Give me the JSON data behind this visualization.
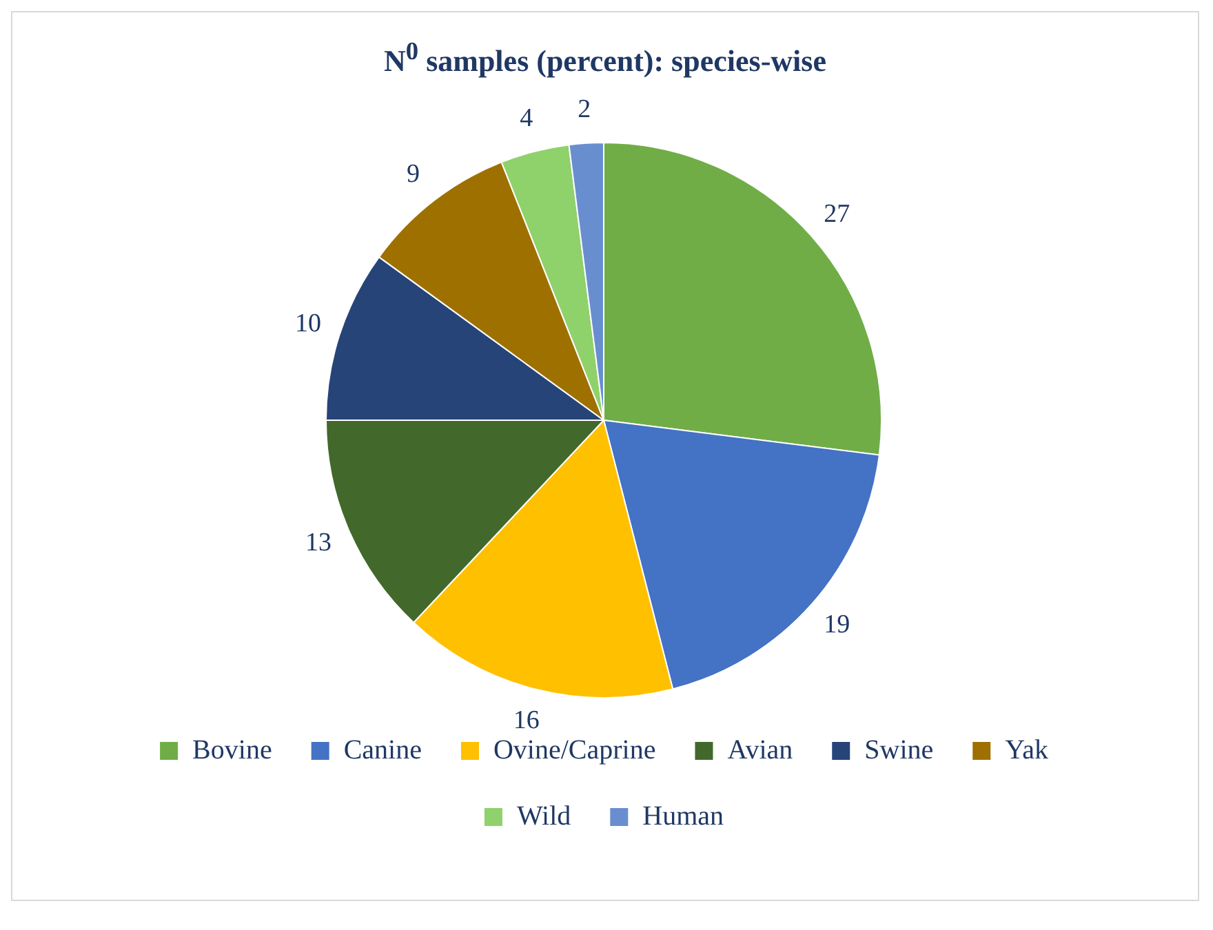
{
  "chart_data": {
    "type": "pie",
    "title": "N$^{0}$ samples (percent): species-wise",
    "categories": [
      "Bovine",
      "Canine",
      "Ovine/Caprine",
      "Avian",
      "Swine",
      "Yak",
      "Wild",
      "Human"
    ],
    "values": [
      27,
      19,
      16,
      13,
      10,
      9,
      4,
      2
    ],
    "colors": [
      "#70ad47",
      "#4472c4",
      "#ffc000",
      "#43682b",
      "#264478",
      "#9e7000",
      "#8fd16b",
      "#698ed0"
    ],
    "data_labels": true,
    "legend": "bottom"
  }
}
